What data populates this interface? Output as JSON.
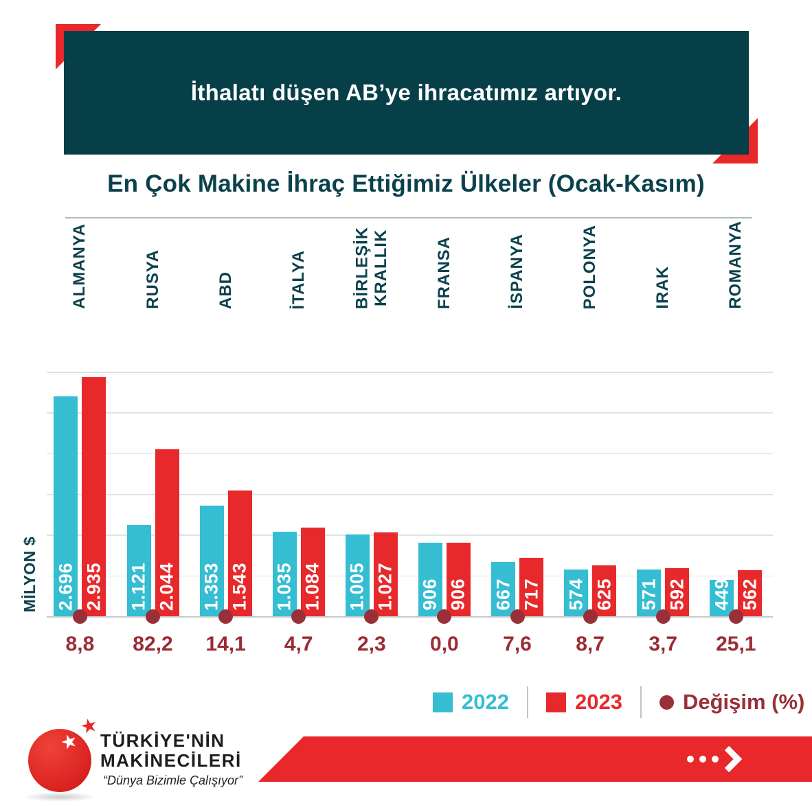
{
  "banner": {
    "title": "İthalatı düşen AB’ye ihracatımız artıyor."
  },
  "subtitle": "En Çok Makine İhraç Ettiğimiz Ülkeler (Ocak-Kasım)",
  "chart_data": {
    "type": "bar",
    "title": "En Çok Makine İhraç Ettiğimiz Ülkeler (Ocak-Kasım)",
    "categories": [
      "ALMANYA",
      "RUSYA",
      "ABD",
      "İTALYA",
      "BİRLEŞİK\nKRALLIK",
      "FRANSA",
      "İSPANYA",
      "POLONYA",
      "IRAK",
      "ROMANYA"
    ],
    "series": [
      {
        "name": "2022",
        "color": "#35bdd2",
        "values": [
          2696,
          1121,
          1353,
          1035,
          1005,
          906,
          667,
          574,
          571,
          449
        ],
        "labels": [
          "2.696",
          "1.121",
          "1.353",
          "1.035",
          "1.005",
          "906",
          "667",
          "574",
          "571",
          "449"
        ]
      },
      {
        "name": "2023",
        "color": "#e8292c",
        "values": [
          2935,
          2044,
          1543,
          1084,
          1027,
          906,
          717,
          625,
          592,
          562
        ],
        "labels": [
          "2.935",
          "2.044",
          "1.543",
          "1.084",
          "1.027",
          "906",
          "717",
          "625",
          "592",
          "562"
        ]
      }
    ],
    "change_percent": [
      "8,8",
      "82,2",
      "14,1",
      "4,7",
      "2,3",
      "0,0",
      "7,6",
      "8,7",
      "3,7",
      "25,1"
    ],
    "change_color": "#9b2b35",
    "ylabel": "MİLYON $",
    "ylim": [
      0,
      3000
    ],
    "gridline_step": 500,
    "grid": true,
    "legend_position": "bottom-right"
  },
  "legend": {
    "items": [
      {
        "label": "2022",
        "color": "#35bdd2",
        "shape": "square"
      },
      {
        "label": "2023",
        "color": "#e8292c",
        "shape": "square"
      },
      {
        "label": "Değişim (%)",
        "color": "#993039",
        "shape": "circle"
      }
    ]
  },
  "footer": {
    "logo_line1": "TÜRKİYE'NİN",
    "logo_line2": "MAKİNECİLERİ",
    "tagline": "“Dünya Bizimle Çalışıyor”",
    "star_icon": "star-icon",
    "arrow_icon": "dots-arrow-right-icon"
  },
  "colors": {
    "banner_bg": "#073f48",
    "accent_red": "#e8282b",
    "text_teal": "#0b414c",
    "bar_2022": "#35bdd2",
    "bar_2023": "#e8292c",
    "change": "#9b2b35"
  }
}
